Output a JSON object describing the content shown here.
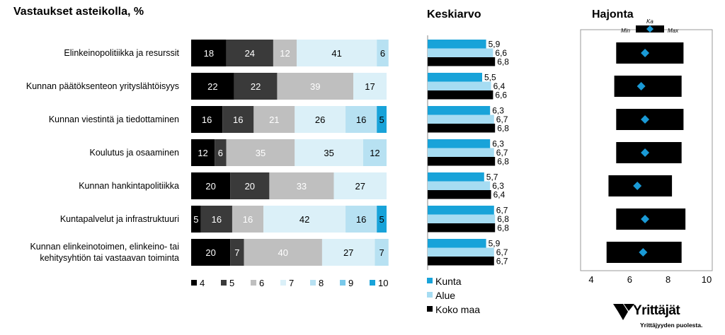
{
  "titles": {
    "stacked": "Vastaukset asteikolla, %",
    "mean": "Keskiarvo",
    "spread": "Hajonta"
  },
  "chart_data": [
    {
      "type": "bar",
      "stacked": true,
      "orientation": "horizontal",
      "title": "Vastaukset asteikolla, %",
      "categories": [
        [
          "Elinkeinopolitiikka ja resurssit"
        ],
        [
          "Kunnan päätöksenteon yrityslähtöisyys"
        ],
        [
          "Kunnan viestintä ja tiedottaminen"
        ],
        [
          "Koulutus ja osaaminen"
        ],
        [
          "Kunnan hankintapolitiikka"
        ],
        [
          "Kuntapalvelut ja infrastruktuuri"
        ],
        [
          "Kunnan elinkeinotoimen, elinkeino- tai",
          "kehitysyhtiön tai vastaavan toiminta"
        ]
      ],
      "series": [
        {
          "name": "4",
          "color": "#000000",
          "values": [
            18,
            22,
            16,
            12,
            20,
            5,
            20
          ]
        },
        {
          "name": "5",
          "color": "#3a3a3a",
          "values": [
            24,
            22,
            16,
            6,
            20,
            16,
            7
          ]
        },
        {
          "name": "6",
          "color": "#bfbfbf",
          "values": [
            12,
            39,
            21,
            35,
            33,
            16,
            40
          ]
        },
        {
          "name": "7",
          "color": "#dbf0f8",
          "values": [
            41,
            17,
            26,
            35,
            27,
            42,
            27
          ]
        },
        {
          "name": "8",
          "color": "#b7e1f2",
          "values": [
            6,
            0,
            16,
            12,
            0,
            16,
            7
          ]
        },
        {
          "name": "9",
          "color": "#79c9ea",
          "values": [
            0,
            0,
            0,
            0,
            0,
            0,
            0
          ]
        },
        {
          "name": "10",
          "color": "#18a3d9",
          "values": [
            0,
            0,
            5,
            0,
            0,
            5,
            0
          ]
        }
      ],
      "xlim": [
        0,
        100
      ],
      "legend": "bottom"
    },
    {
      "type": "bar",
      "orientation": "horizontal",
      "title": "Keskiarvo",
      "series": [
        {
          "name": "Kunta",
          "color": "#18a3d9",
          "values": [
            5.9,
            5.5,
            6.3,
            6.3,
            5.7,
            6.7,
            5.9
          ]
        },
        {
          "name": "Alue",
          "color": "#a6dcf2",
          "values": [
            6.6,
            6.4,
            6.7,
            6.7,
            6.3,
            6.8,
            6.7
          ]
        },
        {
          "name": "Koko maa",
          "color": "#000000",
          "values": [
            6.8,
            6.6,
            6.8,
            6.8,
            6.4,
            6.8,
            6.7
          ]
        }
      ],
      "xlim": [
        0,
        10
      ],
      "legend": "bottom",
      "value_labels": [
        [
          "5,9",
          "6,6",
          "6,8"
        ],
        [
          "5,5",
          "6,4",
          "6,6"
        ],
        [
          "6,3",
          "6,7",
          "6,8"
        ],
        [
          "6,3",
          "6,7",
          "6,8"
        ],
        [
          "5,7",
          "6,3",
          "6,4"
        ],
        [
          "6,7",
          "6,8",
          "6,8"
        ],
        [
          "5,9",
          "6,7",
          "6,7"
        ]
      ]
    },
    {
      "type": "range",
      "title": "Hajonta",
      "legend_labels": {
        "min": "Min",
        "max": "Max",
        "mean": "Ka"
      },
      "min": [
        5.3,
        5.2,
        5.3,
        5.3,
        4.9,
        5.3,
        4.8
      ],
      "max": [
        8.8,
        8.7,
        8.8,
        8.7,
        8.2,
        8.9,
        8.7
      ],
      "mean": [
        6.8,
        6.6,
        6.8,
        6.8,
        6.4,
        6.8,
        6.7
      ],
      "xlim": [
        4,
        10
      ],
      "xticks": [
        "4",
        "6",
        "8",
        "10"
      ]
    }
  ],
  "logo": {
    "name": "Yrittäjät",
    "tagline": "Yrittäjyyden puolesta."
  }
}
